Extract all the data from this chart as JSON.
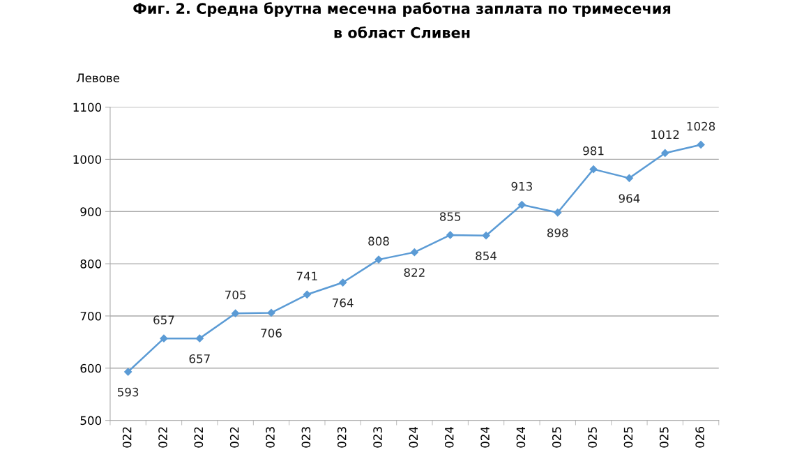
{
  "chart_data": {
    "type": "line",
    "title": "Фиг. 2. Средна брутна месечна работна заплата по тримесечия\nв област Сливен",
    "ylabel": "Левове",
    "categories": [
      "022",
      "022",
      "022",
      "022",
      "023",
      "023",
      "023",
      "023",
      "024",
      "024",
      "024",
      "024",
      "025",
      "025",
      "025",
      "025",
      "026"
    ],
    "series": [
      {
        "color": "#5b9bd5",
        "values": [
          593,
          657,
          657,
          705,
          706,
          741,
          764,
          808,
          822,
          855,
          854,
          913,
          898,
          981,
          964,
          1012,
          1028
        ]
      }
    ],
    "ylim": [
      500,
      1100
    ],
    "yticks": [
      500,
      600,
      700,
      800,
      900,
      1000,
      1100
    ],
    "grid": "y",
    "marker": "diamond",
    "line_style": "solid",
    "data_labels": true,
    "legend": false
  }
}
